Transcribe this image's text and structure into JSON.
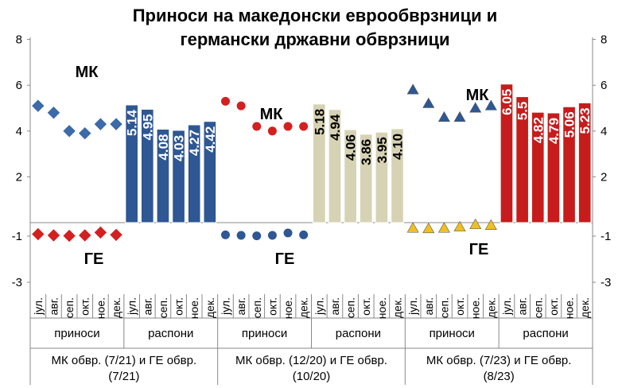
{
  "chart_data": {
    "type": "bar",
    "title_lines": [
      "Приноси на македонски еврообврзници и",
      "германски државни обврзници"
    ],
    "ylim_left": [
      -3,
      8
    ],
    "ylim_right": [
      -3,
      8
    ],
    "left_ticks": [
      "8",
      "6",
      "4",
      "2",
      "-1",
      "-3"
    ],
    "right_ticks": [
      "8",
      "6",
      "4",
      "2",
      "-1",
      "-3"
    ],
    "months": [
      "јул.",
      "авг.",
      "сеп.",
      "окт.",
      "ное.",
      "дек."
    ],
    "panels": [
      {
        "group_label": "МК обвр. (7/21) и ГЕ обвр. (7/21)",
        "yields_label": "приноси",
        "spreads_label": "распони",
        "mk_label": "МК",
        "ge_label": "ГЕ",
        "mk_yields": [
          5.1,
          4.8,
          4.0,
          3.9,
          4.3,
          4.3
        ],
        "ge_yields": [
          -0.45,
          -0.5,
          -0.52,
          -0.5,
          -0.38,
          -0.48
        ],
        "spreads": [
          5.14,
          4.95,
          4.08,
          4.03,
          4.27,
          4.42
        ],
        "spread_labels": [
          "5.14",
          "4.95",
          "4.08",
          "4.03",
          "4.27",
          "4.42"
        ],
        "marker": "diamond",
        "mk_color": "#3d6aa8",
        "ge_color": "#d42020",
        "bar_color": "#2e5793",
        "label_color": "#ffffff"
      },
      {
        "group_label": "МК обвр. (12/20) и ГЕ обвр. (10/20)",
        "yields_label": "приноси",
        "spreads_label": "распони",
        "mk_label": "МК",
        "ge_label": "ГЕ",
        "mk_yields": [
          5.3,
          5.1,
          4.2,
          4.0,
          4.2,
          4.2
        ],
        "ge_yields": [
          -0.48,
          -0.5,
          -0.52,
          -0.5,
          -0.4,
          -0.48
        ],
        "spreads": [
          5.18,
          4.94,
          4.06,
          3.86,
          3.95,
          4.1
        ],
        "spread_labels": [
          "5.18",
          "4.94",
          "4.06",
          "3.86",
          "3.95",
          "4.10"
        ],
        "marker": "circle",
        "mk_color": "#d42020",
        "ge_color": "#2e5793",
        "bar_color": "#d6d2b4",
        "label_color": "#000000"
      },
      {
        "group_label": "МК обвр. (7/23) и ГЕ обвр. (8/23)",
        "yields_label": "приноси",
        "spreads_label": "распони",
        "mk_label": "МК",
        "ge_label": "ГЕ",
        "mk_yields": [
          5.8,
          5.2,
          4.6,
          4.6,
          5.0,
          5.1
        ],
        "ge_yields": [
          -0.2,
          -0.22,
          -0.2,
          -0.15,
          -0.05,
          -0.08
        ],
        "spreads": [
          6.05,
          5.5,
          4.82,
          4.79,
          5.06,
          5.23
        ],
        "spread_labels": [
          "6.05",
          "5.5",
          "4.82",
          "4.79",
          "5.06",
          "5.23"
        ],
        "marker": "triangle",
        "mk_color": "#2e5793",
        "ge_color": "#f0c020",
        "bar_color": "#c61c1c",
        "label_color": "#ffffff"
      }
    ]
  }
}
